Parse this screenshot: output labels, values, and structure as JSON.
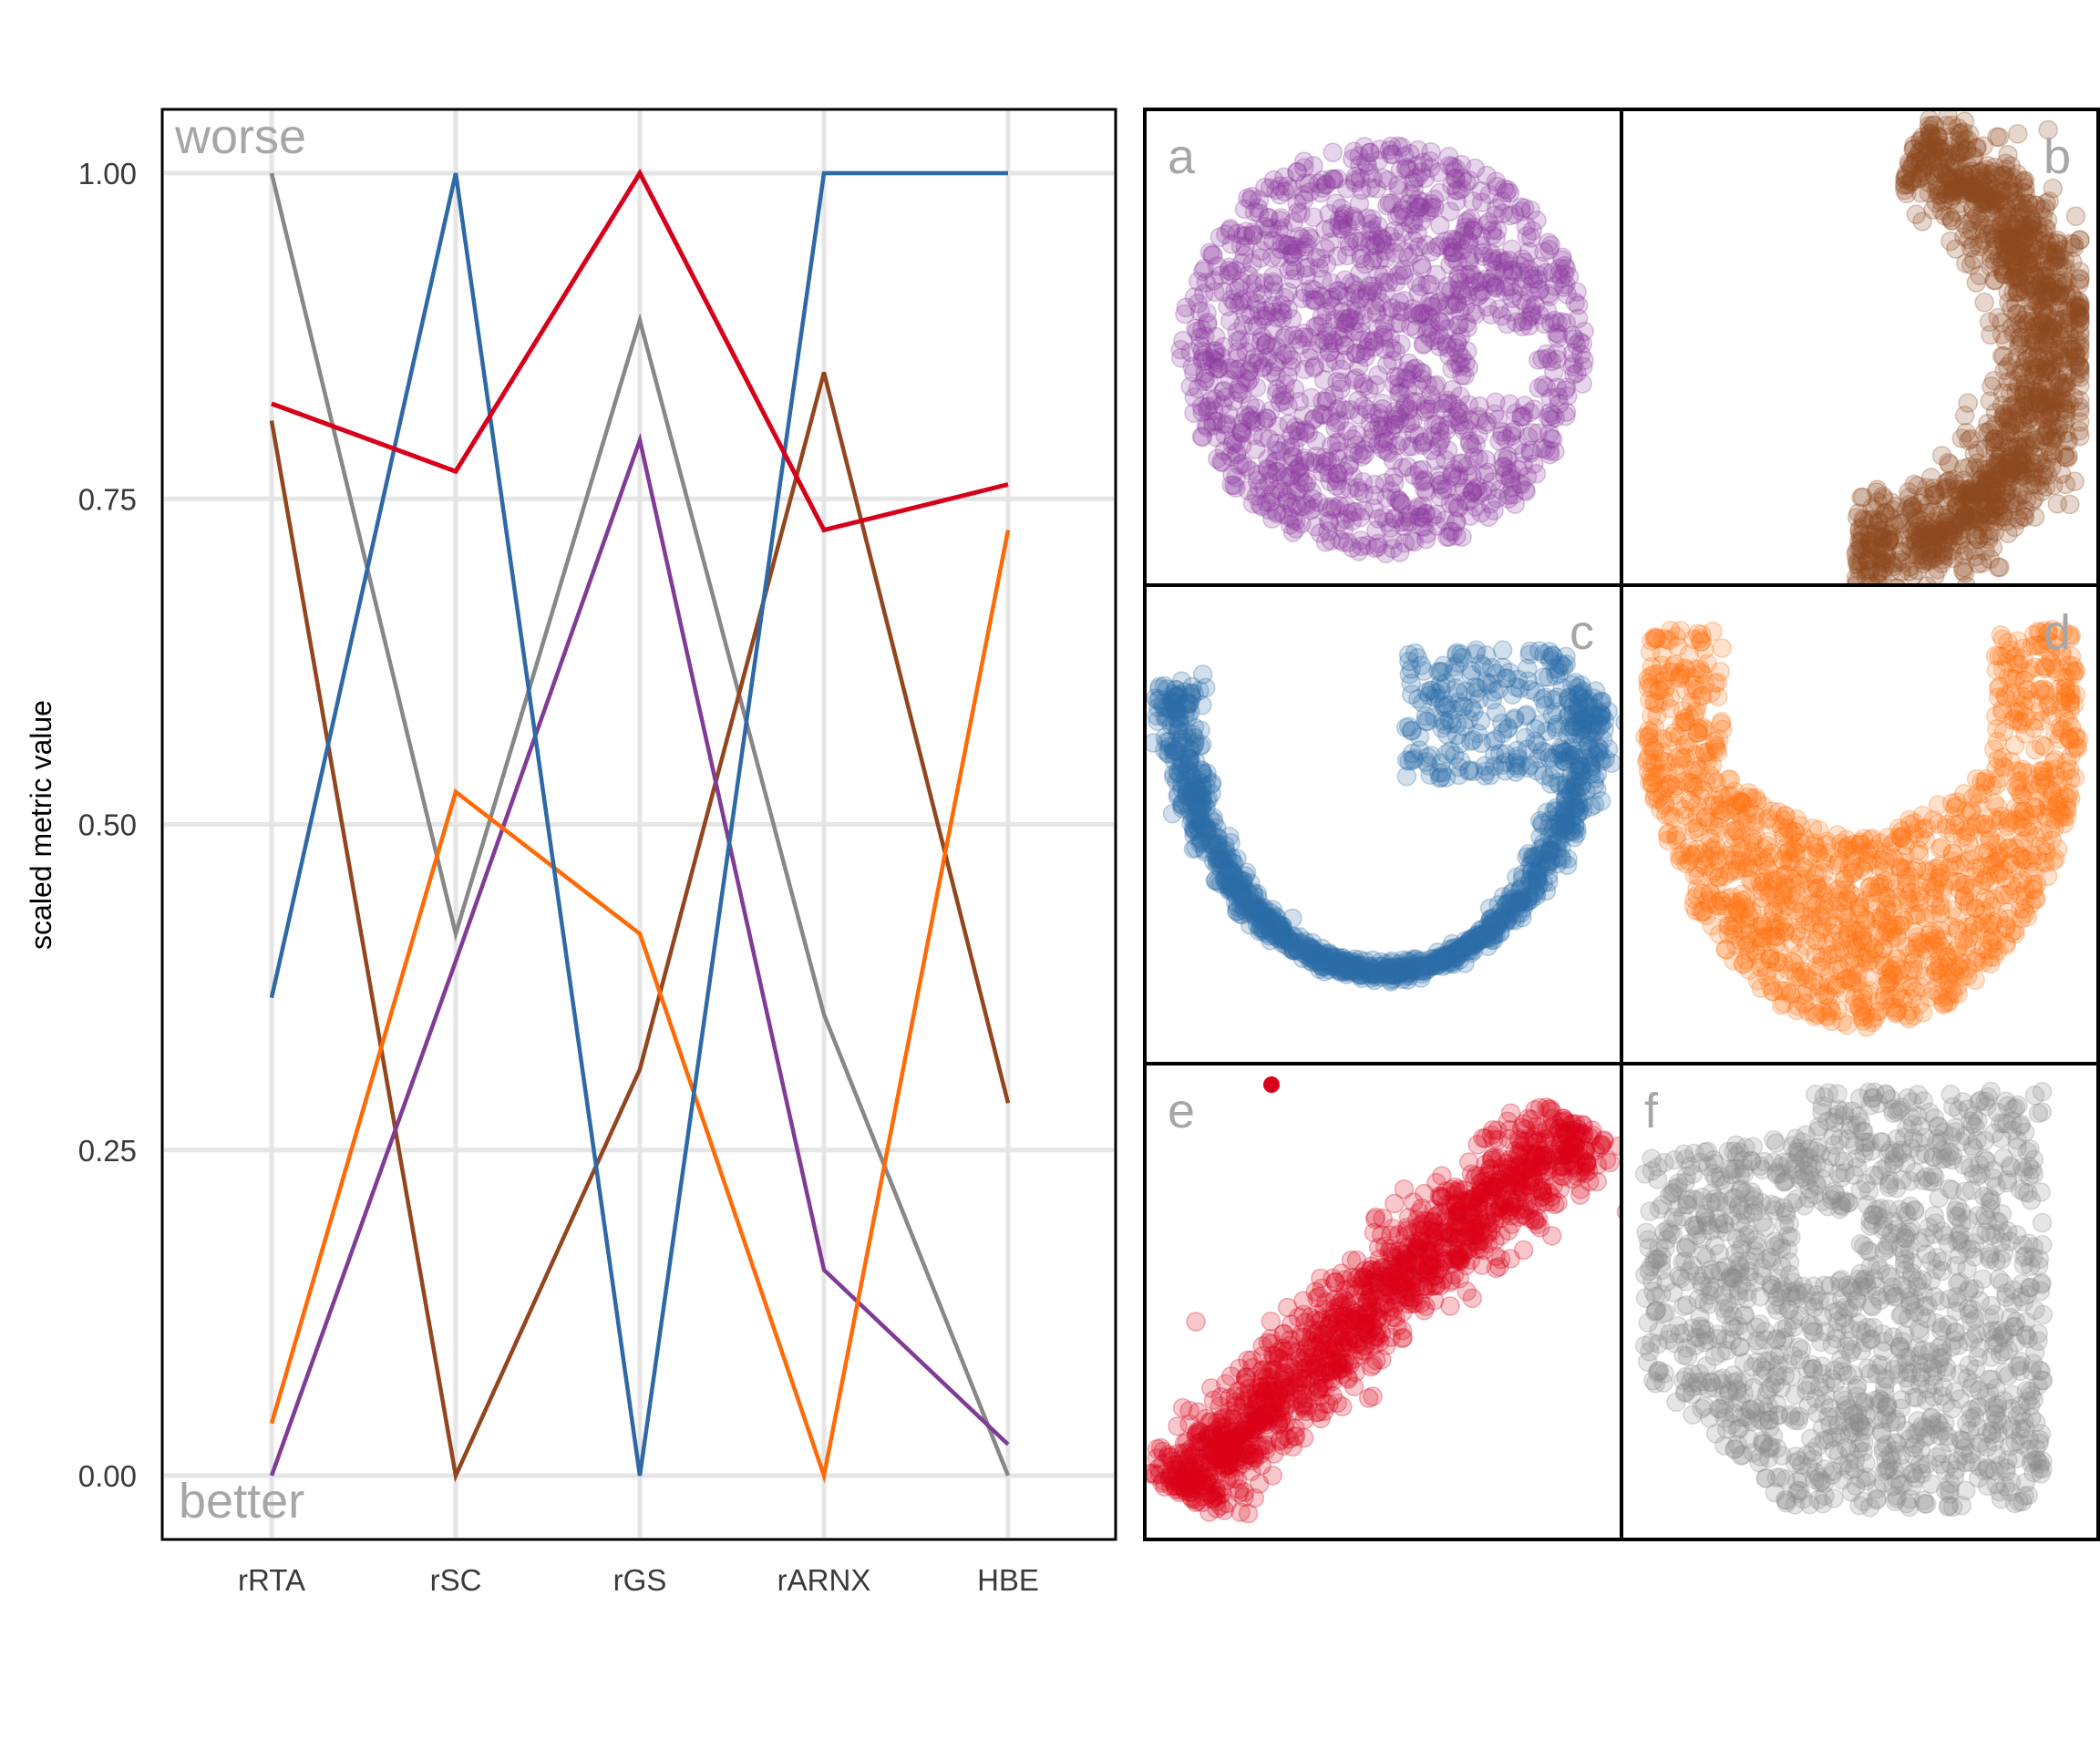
{
  "chart_data": [
    {
      "type": "line",
      "title": "",
      "xlabel": "",
      "ylabel": "scaled metric value",
      "categories": [
        "rRTA",
        "rSC",
        "rGS",
        "rARNX",
        "HBE"
      ],
      "yticks": [
        "0.00",
        "0.25",
        "0.50",
        "0.75",
        "1.00"
      ],
      "ylim": [
        -0.05,
        1.05
      ],
      "grid": true,
      "legend": null,
      "annotations": {
        "top": "worse",
        "bottom": "better"
      },
      "series": [
        {
          "name": "a",
          "color": "#7F3B95",
          "values": [
            0.0,
            0.395,
            0.795,
            0.158,
            0.024
          ]
        },
        {
          "name": "b",
          "color": "#93451D",
          "values": [
            0.81,
            0.0,
            0.312,
            0.847,
            0.286
          ]
        },
        {
          "name": "c",
          "color": "#2D69A6",
          "values": [
            0.367,
            1.0,
            0.0,
            1.0,
            1.0
          ]
        },
        {
          "name": "d",
          "color": "#FF6A07",
          "values": [
            0.04,
            0.525,
            0.416,
            0.0,
            0.726
          ]
        },
        {
          "name": "e",
          "color": "#D7001A",
          "values": [
            0.823,
            0.771,
            1.0,
            0.726,
            0.761
          ]
        },
        {
          "name": "f",
          "color": "#878787",
          "values": [
            1.0,
            0.416,
            0.887,
            0.354,
            0.0
          ]
        }
      ]
    },
    {
      "type": "scatter",
      "title": "",
      "layout": "3x2 grid of embedding scatter panels",
      "panels": [
        {
          "label": "a",
          "color": "#8E3B9E",
          "shape": "round blob with notch on right",
          "label_pos": "top-left"
        },
        {
          "label": "b",
          "color": "#8E4A1E",
          "shape": "crescent opening left",
          "label_pos": "top-right"
        },
        {
          "label": "c",
          "color": "#2C6CA7",
          "shape": "U-shape horseshoe",
          "label_pos": "top-right"
        },
        {
          "label": "d",
          "color": "#FF7515",
          "shape": "broad U / bowl",
          "label_pos": "top-right"
        },
        {
          "label": "e",
          "color": "#DB0019",
          "shape": "diagonal band rising to right with outlier",
          "label_pos": "top-left"
        },
        {
          "label": "f",
          "color": "#8A8A8A",
          "shape": "irregular square blob",
          "label_pos": "top-left"
        }
      ]
    }
  ]
}
